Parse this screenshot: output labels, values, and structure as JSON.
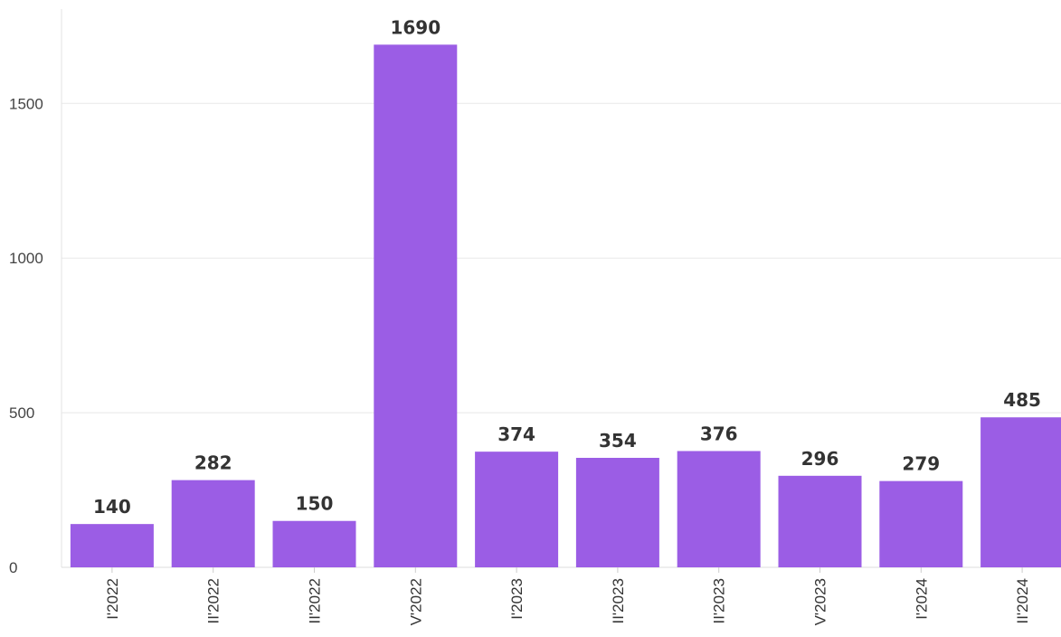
{
  "chart_data": {
    "type": "bar",
    "categories": [
      "I'2022",
      "II'2022",
      "II'2022",
      "V'2022",
      "I'2023",
      "II'2023",
      "II'2023",
      "V'2023",
      "I'2024",
      "II'2024"
    ],
    "values": [
      140,
      282,
      150,
      1690,
      374,
      354,
      376,
      296,
      279,
      485
    ],
    "data_labels": [
      "140",
      "282",
      "150",
      "1690",
      "374",
      "354",
      "376",
      "296",
      "279",
      "485"
    ],
    "y_ticks": [
      0,
      500,
      1000,
      1500
    ],
    "y_tick_labels": [
      "0",
      "500",
      "1000",
      "1500"
    ],
    "ylim": [
      0,
      1800
    ],
    "grid": true,
    "legend": "none",
    "bar_color": "#9b5de5",
    "title": "",
    "xlabel": "",
    "ylabel": ""
  }
}
